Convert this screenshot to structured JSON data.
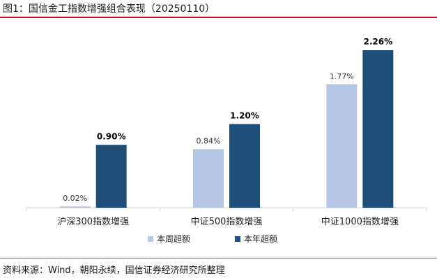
{
  "header": {
    "title": "图1：国信金工指数增强组合表现（20250110）"
  },
  "footer": {
    "source": "资料来源：Wind，朝阳永续，国信证券经济研究所整理"
  },
  "chart_data": {
    "type": "bar",
    "title": "",
    "xlabel": "",
    "ylabel": "",
    "unit": "%",
    "ylim": [
      0,
      2.5
    ],
    "grid": false,
    "legend_position": "bottom-center",
    "categories": [
      "沪深300指数增强",
      "中证500指数增强",
      "中证1000指数增强"
    ],
    "series": [
      {
        "name": "本周超额",
        "color": "#b4c7e7",
        "values": [
          0.02,
          0.84,
          1.77
        ],
        "labels": [
          "0.02%",
          "0.84%",
          "1.77%"
        ],
        "label_bold": false
      },
      {
        "name": "本年超额",
        "color": "#1f4e79",
        "values": [
          0.9,
          1.2,
          2.26
        ],
        "labels": [
          "0.90%",
          "1.20%",
          "2.26%"
        ],
        "label_bold": true
      }
    ]
  }
}
